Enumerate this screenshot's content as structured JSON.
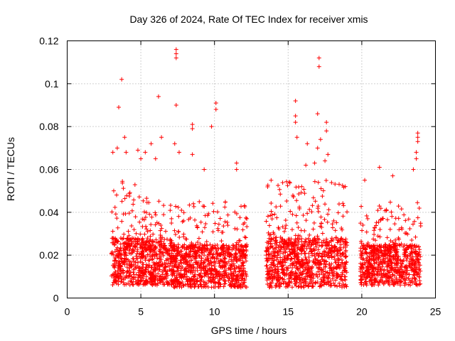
{
  "chart_data": {
    "type": "scatter",
    "title": "Day 326 of 2024, Rate Of TEC Index for receiver xmis",
    "xlabel": "GPS time / hours",
    "ylabel": "ROTI / TECUs",
    "xlim": [
      0,
      25
    ],
    "ylim": [
      0,
      0.12
    ],
    "xticks": [
      "0",
      "5",
      "10",
      "15",
      "20",
      "25"
    ],
    "yticks": [
      "0",
      "0.02",
      "0.04",
      "0.06",
      "0.08",
      "0.1",
      "0.12"
    ],
    "grid": true,
    "marker": "plus",
    "colors": {
      "marker": "#ff0000"
    },
    "segments": [
      {
        "x_start": 3.0,
        "x_end": 7.1,
        "y_base": 0.006,
        "y_dense_top": 0.028,
        "y_spread_top": 0.055
      },
      {
        "x_start": 7.1,
        "x_end": 12.2,
        "y_base": 0.005,
        "y_dense_top": 0.025,
        "y_spread_top": 0.045
      },
      {
        "x_start": 13.5,
        "x_end": 19.0,
        "y_base": 0.005,
        "y_dense_top": 0.028,
        "y_spread_top": 0.055
      },
      {
        "x_start": 19.9,
        "x_end": 24.0,
        "y_base": 0.006,
        "y_dense_top": 0.025,
        "y_spread_top": 0.045
      }
    ],
    "outliers": [
      {
        "x": 3.1,
        "y": 0.068
      },
      {
        "x": 3.4,
        "y": 0.07
      },
      {
        "x": 3.5,
        "y": 0.089
      },
      {
        "x": 3.7,
        "y": 0.102
      },
      {
        "x": 3.9,
        "y": 0.075
      },
      {
        "x": 4.0,
        "y": 0.068
      },
      {
        "x": 4.8,
        "y": 0.069
      },
      {
        "x": 5.0,
        "y": 0.065
      },
      {
        "x": 5.3,
        "y": 0.068
      },
      {
        "x": 5.7,
        "y": 0.072
      },
      {
        "x": 6.0,
        "y": 0.065
      },
      {
        "x": 6.2,
        "y": 0.094
      },
      {
        "x": 6.4,
        "y": 0.075
      },
      {
        "x": 7.3,
        "y": 0.072
      },
      {
        "x": 7.4,
        "y": 0.116
      },
      {
        "x": 7.4,
        "y": 0.114
      },
      {
        "x": 7.4,
        "y": 0.112
      },
      {
        "x": 7.4,
        "y": 0.09
      },
      {
        "x": 7.6,
        "y": 0.068
      },
      {
        "x": 8.5,
        "y": 0.081
      },
      {
        "x": 8.5,
        "y": 0.079
      },
      {
        "x": 8.5,
        "y": 0.067
      },
      {
        "x": 9.3,
        "y": 0.06
      },
      {
        "x": 9.8,
        "y": 0.08
      },
      {
        "x": 10.1,
        "y": 0.091
      },
      {
        "x": 10.1,
        "y": 0.088
      },
      {
        "x": 11.5,
        "y": 0.063
      },
      {
        "x": 11.5,
        "y": 0.06
      },
      {
        "x": 15.5,
        "y": 0.092
      },
      {
        "x": 15.5,
        "y": 0.085
      },
      {
        "x": 15.5,
        "y": 0.082
      },
      {
        "x": 15.6,
        "y": 0.075
      },
      {
        "x": 16.2,
        "y": 0.062
      },
      {
        "x": 16.3,
        "y": 0.072
      },
      {
        "x": 16.8,
        "y": 0.063
      },
      {
        "x": 17.0,
        "y": 0.086
      },
      {
        "x": 17.0,
        "y": 0.07
      },
      {
        "x": 17.1,
        "y": 0.112
      },
      {
        "x": 17.1,
        "y": 0.108
      },
      {
        "x": 17.2,
        "y": 0.074
      },
      {
        "x": 17.6,
        "y": 0.082
      },
      {
        "x": 17.6,
        "y": 0.078
      },
      {
        "x": 17.7,
        "y": 0.067
      },
      {
        "x": 17.5,
        "y": 0.064
      },
      {
        "x": 20.2,
        "y": 0.055
      },
      {
        "x": 21.2,
        "y": 0.061
      },
      {
        "x": 22.1,
        "y": 0.057
      },
      {
        "x": 23.5,
        "y": 0.06
      },
      {
        "x": 23.7,
        "y": 0.068
      },
      {
        "x": 23.8,
        "y": 0.077
      },
      {
        "x": 23.8,
        "y": 0.075
      },
      {
        "x": 23.8,
        "y": 0.073
      },
      {
        "x": 23.7,
        "y": 0.065
      }
    ]
  }
}
